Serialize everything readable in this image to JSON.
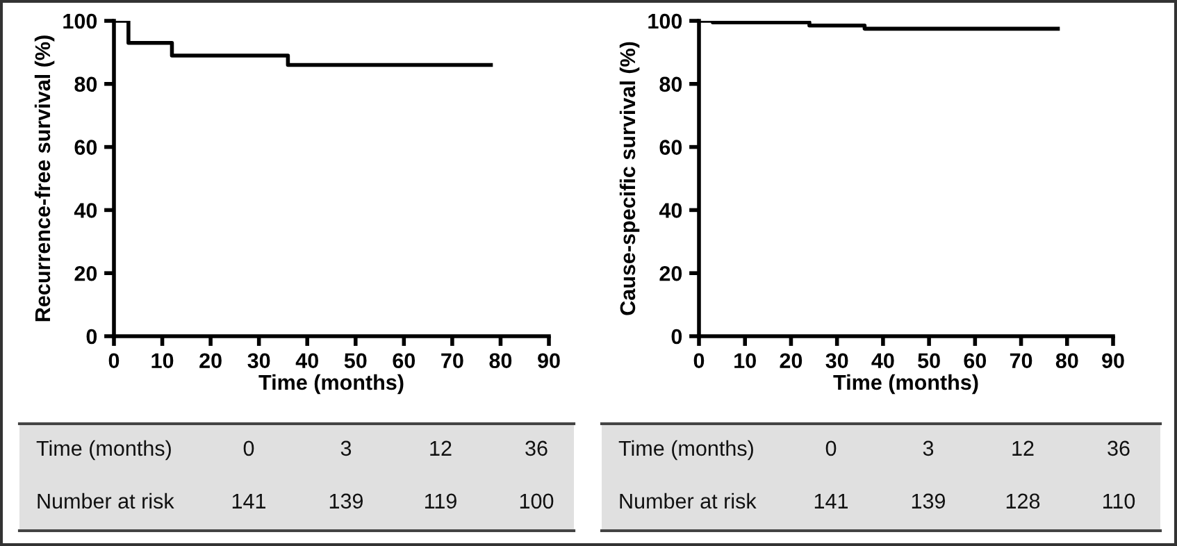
{
  "chart_data": [
    {
      "type": "step",
      "ylabel": "Recurrence-free survival (%)",
      "xlabel": "Time (months)",
      "x": [
        0,
        3,
        12,
        36,
        78
      ],
      "series": [
        {
          "color": "#000000",
          "values": [
            100,
            93,
            89,
            86,
            86
          ]
        }
      ],
      "xlim": [
        0,
        90
      ],
      "xticks": [
        0,
        10,
        20,
        30,
        40,
        50,
        60,
        70,
        80,
        90
      ],
      "ylim": [
        0,
        100
      ],
      "yticks": [
        0,
        20,
        40,
        60,
        80,
        100
      ],
      "grid": false,
      "legend": false,
      "marker": "none",
      "line_style": "solid",
      "annotations": [
        "Time (months)",
        "0",
        "3",
        "12",
        "36",
        "Number at risk",
        "141",
        "139",
        "119",
        "100"
      ]
    },
    {
      "type": "step",
      "ylabel": "Cause-specific survival (%)",
      "xlabel": "Time (months)",
      "x": [
        0,
        3,
        24,
        36,
        78
      ],
      "series": [
        {
          "color": "#000000",
          "values": [
            100,
            99.5,
            98.5,
            97.5,
            97.5
          ]
        }
      ],
      "xlim": [
        0,
        90
      ],
      "xticks": [
        0,
        10,
        20,
        30,
        40,
        50,
        60,
        70,
        80,
        90
      ],
      "ylim": [
        0,
        100
      ],
      "yticks": [
        0,
        20,
        40,
        60,
        80,
        100
      ],
      "grid": false,
      "legend": false,
      "marker": "none",
      "line_style": "solid",
      "annotations": [
        "Time (months)",
        "0",
        "3",
        "12",
        "36",
        "Number at risk",
        "141",
        "139",
        "128",
        "110"
      ]
    }
  ]
}
